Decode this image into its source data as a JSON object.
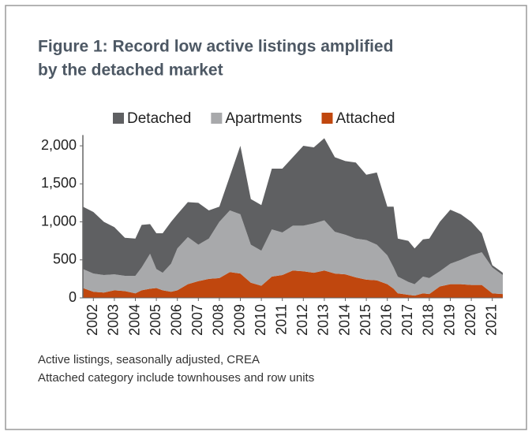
{
  "chart_data": {
    "type": "stacked_area",
    "title": [
      "Figure 1: Record low active listings amplified",
      "by the detached market"
    ],
    "notes": [
      "Active listings, seasonally adjusted, CREA",
      "Attached category include townhouses and row units"
    ],
    "x": [
      2001.5,
      2002,
      2002.5,
      2003,
      2003.5,
      2004,
      2004.3,
      2004.7,
      2005,
      2005.3,
      2005.7,
      2006,
      2006.5,
      2007,
      2007.5,
      2008,
      2008.5,
      2009,
      2009.5,
      2010,
      2010.5,
      2011,
      2011.5,
      2012,
      2012.5,
      2013,
      2013.5,
      2014,
      2014.5,
      2015,
      2015.5,
      2016,
      2016.3,
      2016.5,
      2017,
      2017.3,
      2017.7,
      2018,
      2018.5,
      2019,
      2019.5,
      2020,
      2020.5,
      2021,
      2021.5
    ],
    "series": [
      {
        "name": "Attached",
        "color": "#c0470e",
        "values": [
          130,
          80,
          70,
          100,
          90,
          60,
          100,
          120,
          130,
          100,
          80,
          100,
          180,
          220,
          250,
          260,
          340,
          320,
          200,
          160,
          280,
          300,
          360,
          350,
          330,
          360,
          320,
          310,
          270,
          240,
          230,
          180,
          120,
          60,
          40,
          30,
          60,
          50,
          150,
          180,
          180,
          170,
          170,
          60,
          50
        ]
      },
      {
        "name": "Apartments",
        "color": "#a8a9ab",
        "values": [
          250,
          240,
          230,
          210,
          200,
          230,
          300,
          460,
          250,
          230,
          370,
          550,
          620,
          480,
          530,
          740,
          810,
          780,
          500,
          460,
          620,
          560,
          590,
          600,
          650,
          660,
          550,
          520,
          510,
          520,
          470,
          380,
          280,
          220,
          170,
          150,
          220,
          210,
          200,
          270,
          320,
          390,
          430,
          340,
          250
        ]
      },
      {
        "name": "Detached",
        "color": "#5f6062",
        "values": [
          820,
          810,
          700,
          620,
          500,
          490,
          560,
          390,
          470,
          520,
          550,
          450,
          460,
          550,
          370,
          200,
          450,
          900,
          600,
          600,
          800,
          840,
          900,
          1050,
          1000,
          1080,
          980,
          970,
          1000,
          860,
          950,
          640,
          800,
          500,
          540,
          470,
          490,
          520,
          650,
          710,
          600,
          440,
          250,
          30,
          30
        ]
      }
    ],
    "legend_order": [
      2,
      1,
      0
    ],
    "xlim": [
      2001.5,
      2021.5
    ],
    "xticks": [
      2002,
      2003,
      2004,
      2005,
      2006,
      2007,
      2008,
      2009,
      2010,
      2011,
      2012,
      2013,
      2014,
      2015,
      2016,
      2017,
      2018,
      2019,
      2020,
      2021
    ],
    "ylim": [
      0,
      2100
    ],
    "yticks": [
      0,
      500,
      {
        "value": 1000,
        "label": "1,000"
      },
      {
        "value": 1500,
        "label": "1,500"
      },
      {
        "value": 2000,
        "label": "2,000"
      }
    ]
  }
}
